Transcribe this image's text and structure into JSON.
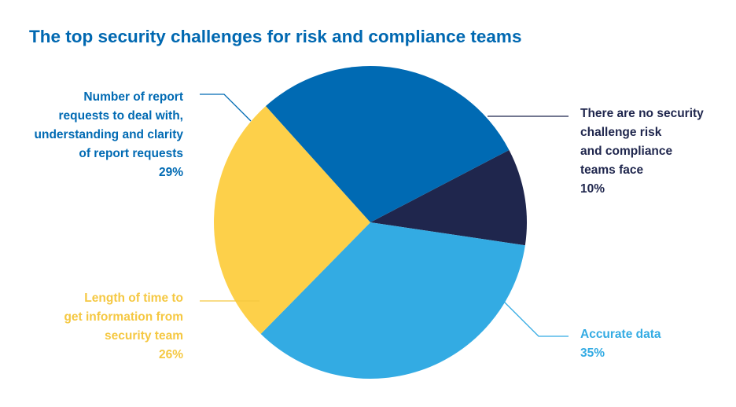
{
  "title": "The top security challenges for risk and compliance teams",
  "chart_data": {
    "type": "pie",
    "title": "The top security challenges for risk and compliance teams",
    "slices": [
      {
        "key": "no_challenge",
        "label_lines": [
          "There are no security",
          "challenge risk",
          "and compliance",
          "teams face"
        ],
        "value": 10,
        "value_label": "10%",
        "color": "#1f264d"
      },
      {
        "key": "accurate_data",
        "label_lines": [
          "Accurate data"
        ],
        "value": 35,
        "value_label": "35%",
        "color": "#33abe3"
      },
      {
        "key": "length_of_time",
        "label_lines": [
          "Length of time to",
          "get information from",
          "security team"
        ],
        "value": 26,
        "value_label": "26%",
        "color": "#fdd04a"
      },
      {
        "key": "report_requests",
        "label_lines": [
          "Number of report",
          "requests to deal with,",
          "understanding and clarity",
          "of report requests"
        ],
        "value": 29,
        "value_label": "29%",
        "color": "#006ab3"
      }
    ],
    "label_colors": {
      "no_challenge": "#1f264d",
      "accurate_data": "#33abe3",
      "length_of_time": "#f5c842",
      "report_requests": "#006ab3"
    }
  }
}
